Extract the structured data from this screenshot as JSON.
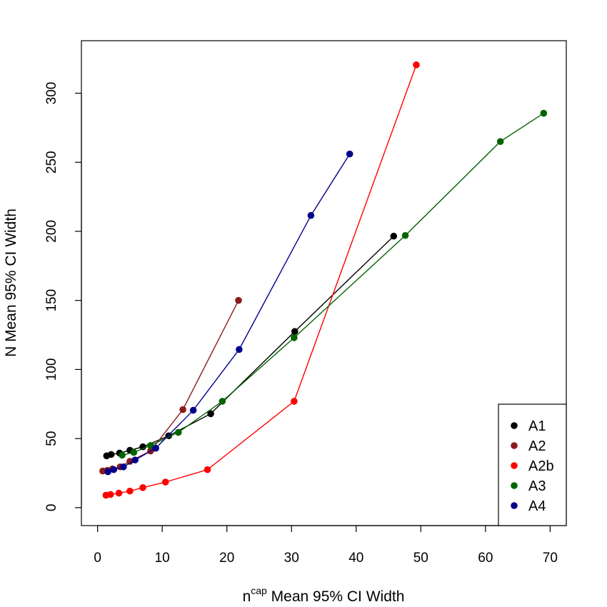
{
  "chart_data": {
    "type": "line",
    "xlabel": {
      "base": "n",
      "superscript": "cap",
      "rest": " Mean 95% CI Width"
    },
    "ylabel": "N Mean 95% CI Width",
    "xlim": [
      -2.5,
      72.5
    ],
    "ylim": [
      -13,
      338
    ],
    "x_ticks": [
      0,
      10,
      20,
      30,
      40,
      50,
      60,
      70
    ],
    "y_ticks": [
      0,
      50,
      100,
      150,
      200,
      250,
      300
    ],
    "grid": false,
    "legend_position": "bottom-right",
    "series": [
      {
        "name": "A1",
        "color": "#000000",
        "points": [
          [
            1.4,
            37.5
          ],
          [
            2.1,
            38.5
          ],
          [
            3.4,
            39.5
          ],
          [
            5.0,
            41.5
          ],
          [
            7.0,
            44.0
          ],
          [
            11.0,
            52.0
          ],
          [
            17.5,
            68.0
          ],
          [
            30.5,
            127.5
          ],
          [
            45.8,
            196.5
          ]
        ]
      },
      {
        "name": "A2",
        "color": "#8b1a1a",
        "points": [
          [
            0.8,
            26.5
          ],
          [
            1.5,
            27.0
          ],
          [
            2.3,
            28.0
          ],
          [
            3.5,
            29.5
          ],
          [
            5.0,
            33.5
          ],
          [
            8.2,
            41.0
          ],
          [
            13.2,
            71.0
          ],
          [
            21.8,
            150.0
          ]
        ]
      },
      {
        "name": "A2b",
        "color": "#ff0000",
        "points": [
          [
            1.3,
            9.0
          ],
          [
            2.0,
            9.5
          ],
          [
            3.3,
            10.5
          ],
          [
            5.0,
            12.0
          ],
          [
            7.0,
            14.5
          ],
          [
            10.5,
            18.5
          ],
          [
            17.0,
            27.5
          ],
          [
            30.4,
            77.0
          ],
          [
            49.3,
            320.5
          ]
        ]
      },
      {
        "name": "A3",
        "color": "#006400",
        "points": [
          [
            3.8,
            38.0
          ],
          [
            5.6,
            40.0
          ],
          [
            8.2,
            45.0
          ],
          [
            12.5,
            54.5
          ],
          [
            19.3,
            77.0
          ],
          [
            30.4,
            123.0
          ],
          [
            47.6,
            197.0
          ],
          [
            62.3,
            265.0
          ],
          [
            69.0,
            285.5
          ]
        ]
      },
      {
        "name": "A4",
        "color": "#00008b",
        "points": [
          [
            1.6,
            26.0
          ],
          [
            2.5,
            27.5
          ],
          [
            4.0,
            29.5
          ],
          [
            5.8,
            34.5
          ],
          [
            9.0,
            43.0
          ],
          [
            14.8,
            70.5
          ],
          [
            21.9,
            114.5
          ],
          [
            33.0,
            211.5
          ],
          [
            39.0,
            256.0
          ]
        ]
      }
    ]
  }
}
